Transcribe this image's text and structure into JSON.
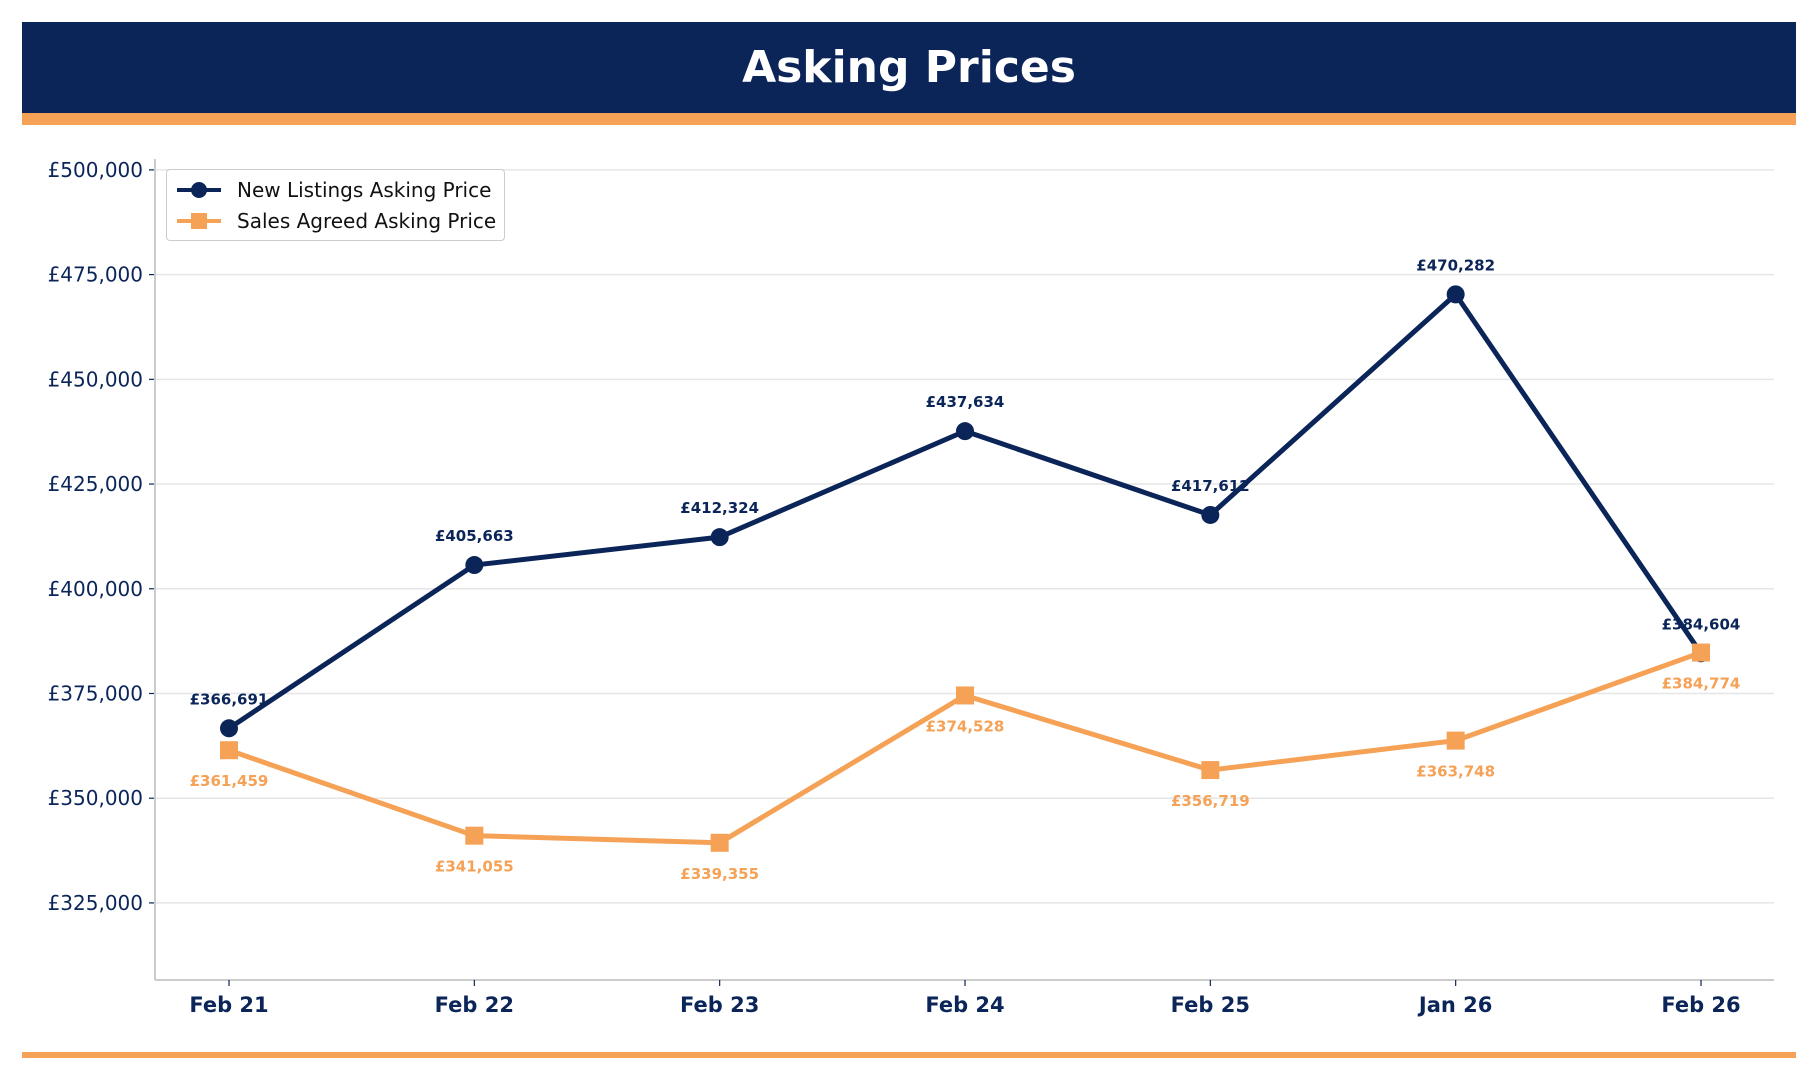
{
  "header": {
    "title": "Asking Prices"
  },
  "colors": {
    "navy": "#0b2559",
    "orange": "#f5a156"
  },
  "chart_data": {
    "type": "line",
    "title": "Asking Prices",
    "xlabel": "",
    "ylabel": "",
    "categories": [
      "Feb 21",
      "Feb 22",
      "Feb 23",
      "Feb 24",
      "Feb 25",
      "Jan 26",
      "Feb 26"
    ],
    "ylim": [
      306600,
      502600
    ],
    "yticks": [
      325000,
      350000,
      375000,
      400000,
      425000,
      450000,
      475000,
      500000
    ],
    "ytick_labels": [
      "£325,000",
      "£350,000",
      "£375,000",
      "£400,000",
      "£425,000",
      "£450,000",
      "£475,000",
      "£500,000"
    ],
    "grid": true,
    "legend_position": "top-left",
    "series": [
      {
        "name": "New Listings Asking Price",
        "color": "#0b2559",
        "marker": "circle",
        "values": [
          366691,
          405663,
          412324,
          437634,
          417612,
          470282,
          384604
        ],
        "labels": [
          "£366,691",
          "£405,663",
          "£412,324",
          "£437,634",
          "£417,612",
          "£470,282",
          "£384,604"
        ]
      },
      {
        "name": "Sales Agreed Asking Price",
        "color": "#f5a156",
        "marker": "square",
        "values": [
          361459,
          341055,
          339355,
          374528,
          356719,
          363748,
          384774
        ],
        "labels": [
          "£361,459",
          "£341,055",
          "£339,355",
          "£374,528",
          "£356,719",
          "£363,748",
          "£384,774"
        ]
      }
    ]
  }
}
